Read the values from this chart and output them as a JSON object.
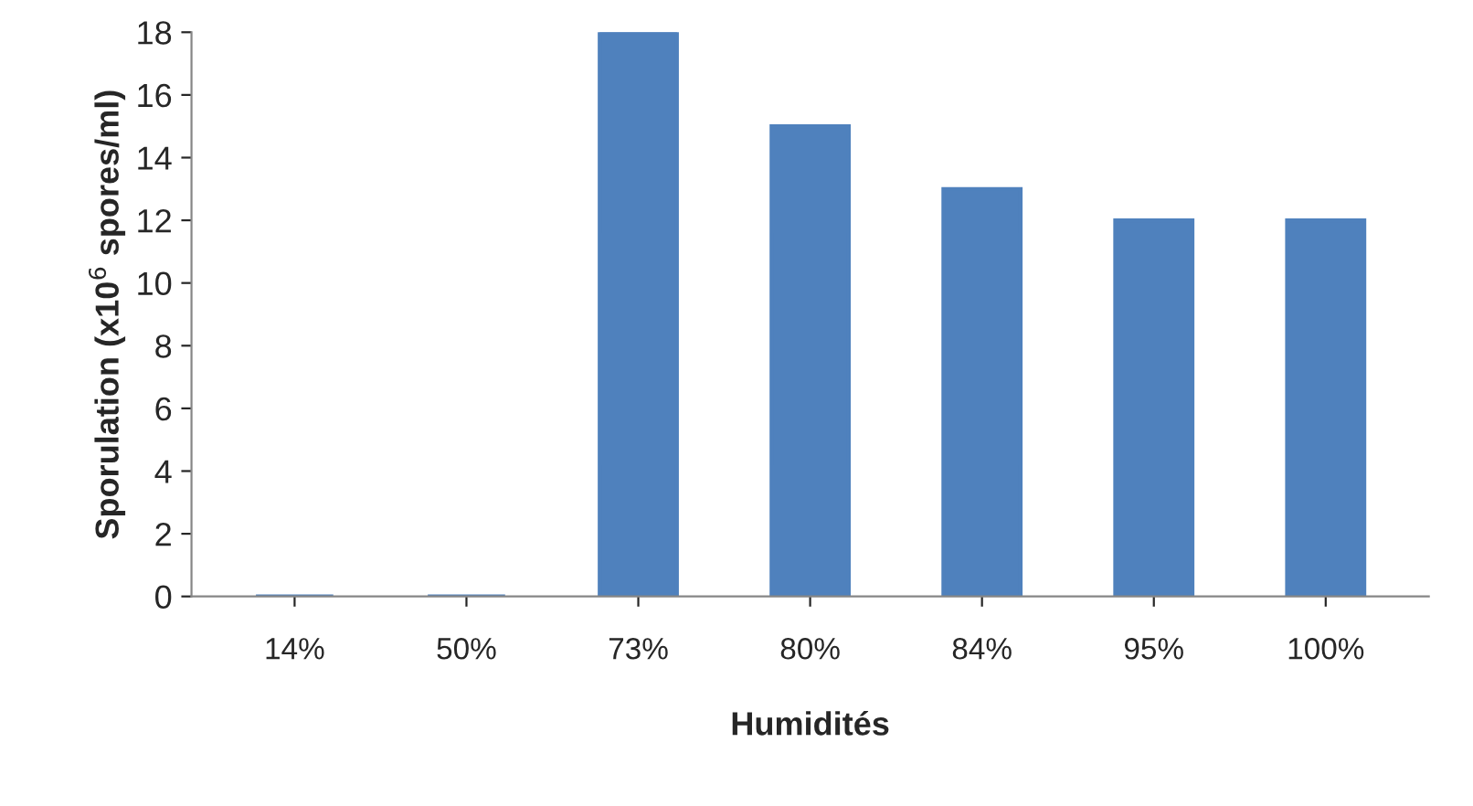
{
  "chart_data": {
    "type": "bar",
    "xlabel": "Humidités",
    "ylabel": "Sporulation (x10$^{6}$ spores/ml)",
    "categories": [
      "14%",
      "50%",
      "73%",
      "80%",
      "84%",
      "95%",
      "100%"
    ],
    "values": [
      0,
      0,
      18,
      15,
      13,
      12,
      12
    ],
    "color": "#4f81bd",
    "ylim": [
      0,
      18
    ],
    "yticks": [
      0,
      2,
      4,
      6,
      8,
      10,
      12,
      14,
      16,
      18
    ],
    "grid": false,
    "legend": false
  }
}
